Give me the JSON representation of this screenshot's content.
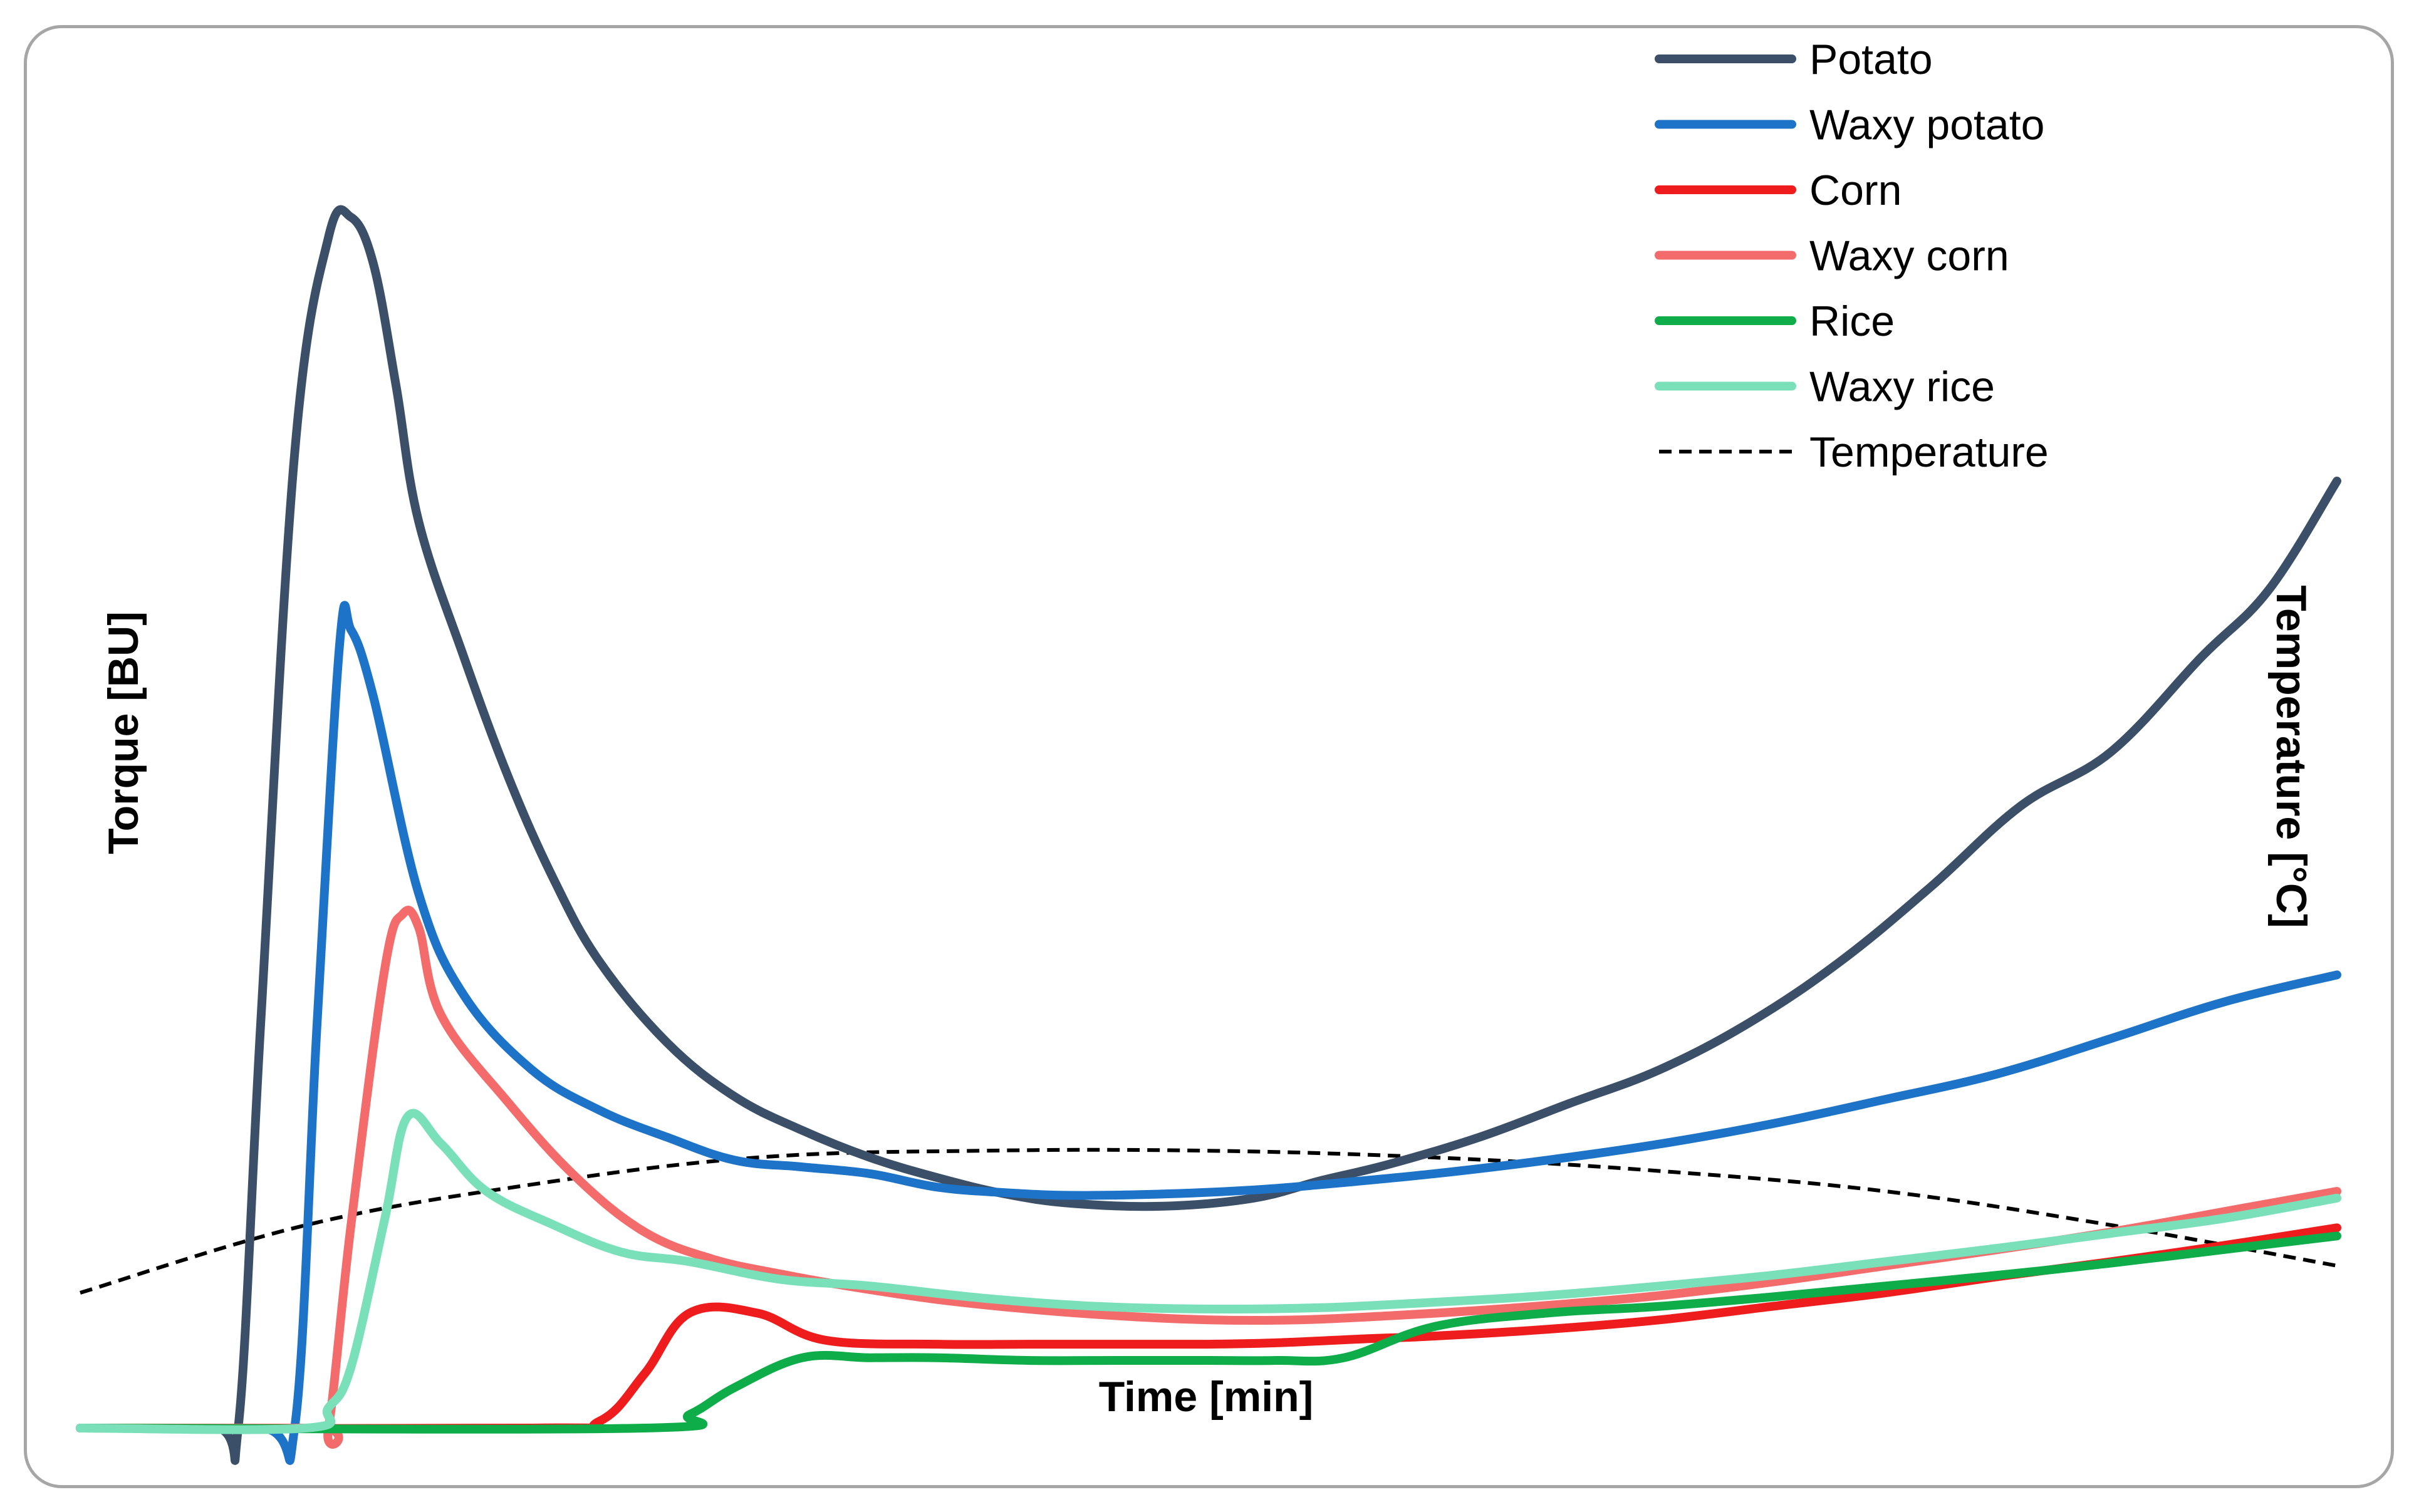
{
  "chart_data": {
    "type": "line",
    "title": "",
    "xlabel": "Time [min]",
    "ylabel": "Torque [BU]",
    "y2label": "Temperature [°C]",
    "xlim": [
      0,
      100
    ],
    "ylim": [
      0,
      100
    ],
    "y2lim": [
      0,
      100
    ],
    "grid": false,
    "legend_position": "top-right",
    "series": [
      {
        "name": "Potato",
        "color": "#3b5068",
        "dashed": false,
        "axis": "left",
        "x": [
          0,
          6,
          7,
          8,
          9.5,
          11,
          12,
          13,
          14,
          15,
          17,
          19,
          21,
          23,
          26,
          29,
          32,
          35,
          38,
          41,
          44,
          48,
          52,
          55,
          58,
          62,
          66,
          70,
          74,
          78,
          82,
          86,
          90,
          94,
          97,
          100
        ],
        "y": [
          0,
          0,
          0,
          30,
          72,
          88,
          89.5,
          86,
          77,
          67,
          57,
          48,
          40.5,
          34.5,
          28.5,
          24.5,
          22,
          20,
          18.5,
          17.3,
          16.6,
          16.4,
          17,
          18.3,
          19.5,
          21.5,
          24,
          26.5,
          30,
          34.5,
          40,
          46,
          50,
          57,
          62,
          70
        ]
      },
      {
        "name": "Waxy potato",
        "color": "#1c73c7",
        "dashed": false,
        "axis": "left",
        "x": [
          0,
          8,
          9.5,
          10.5,
          11.5,
          12,
          13,
          15,
          17,
          20,
          23,
          26,
          29,
          32,
          35,
          38,
          41,
          44,
          48,
          52,
          55,
          60,
          65,
          70,
          75,
          80,
          85,
          90,
          95,
          100
        ],
        "y": [
          0,
          0,
          0,
          30,
          58,
          59,
          54,
          39.5,
          32,
          26.5,
          23.5,
          21.5,
          19.8,
          19.3,
          18.8,
          17.8,
          17.4,
          17.2,
          17.3,
          17.6,
          18,
          18.8,
          19.8,
          21,
          22.5,
          24.3,
          26.2,
          28.8,
          31.5,
          33.5
        ]
      },
      {
        "name": "Corn",
        "color": "#ee1c1c",
        "dashed": false,
        "axis": "left",
        "x": [
          0,
          20,
          23,
          25,
          27,
          30,
          33,
          38,
          42,
          46,
          50,
          53,
          57,
          60,
          65,
          70,
          75,
          80,
          85,
          90,
          95,
          100
        ],
        "y": [
          0,
          0,
          0.5,
          4,
          8.5,
          8.5,
          6.5,
          6.2,
          6.2,
          6.2,
          6.2,
          6.3,
          6.6,
          6.8,
          7.3,
          8,
          9,
          10,
          11.2,
          12.3,
          13.5,
          14.8
        ]
      },
      {
        "name": "Waxy corn",
        "color": "#f36b6b",
        "dashed": false,
        "axis": "left",
        "x": [
          0,
          10.5,
          11,
          12,
          13.5,
          14.3,
          15,
          16,
          19,
          22,
          25,
          28,
          31,
          34,
          38,
          42,
          46,
          50,
          54,
          58,
          62,
          66,
          70,
          75,
          80,
          85,
          90,
          95,
          100
        ],
        "y": [
          0,
          0,
          0,
          15,
          34,
          38,
          37,
          30.5,
          24,
          18.5,
          14.5,
          12.5,
          11.4,
          10.5,
          9.5,
          8.8,
          8.3,
          8,
          8,
          8.3,
          8.7,
          9.2,
          9.8,
          10.8,
          12,
          13.2,
          14.5,
          16,
          17.5
        ]
      },
      {
        "name": "Rice",
        "color": "#0fad4a",
        "dashed": false,
        "axis": "left",
        "x": [
          0,
          25,
          27,
          29,
          32,
          35,
          38,
          42,
          46,
          50,
          53,
          56,
          60,
          65,
          70,
          75,
          80,
          85,
          90,
          95,
          100
        ],
        "y": [
          0,
          0,
          1,
          3,
          5.2,
          5.2,
          5.2,
          5,
          5,
          5,
          5,
          5.2,
          7.5,
          8.5,
          9,
          9.7,
          10.5,
          11.3,
          12.2,
          13.2,
          14.2
        ]
      },
      {
        "name": "Waxy rice",
        "color": "#79e0b9",
        "dashed": false,
        "axis": "left",
        "x": [
          0,
          10,
          11,
          12,
          13.5,
          14.5,
          16,
          18,
          21,
          24,
          27,
          31,
          35,
          40,
          45,
          50,
          55,
          60,
          65,
          70,
          75,
          80,
          85,
          90,
          95,
          100
        ],
        "y": [
          0,
          0,
          1.5,
          4.5,
          15.5,
          23,
          21,
          17.5,
          15,
          13,
          12.3,
          11,
          10.5,
          9.6,
          9,
          8.8,
          8.9,
          9.3,
          9.8,
          10.5,
          11.3,
          12.3,
          13.3,
          14.4,
          15.5,
          17
        ]
      },
      {
        "name": "Temperature",
        "color": "#000000",
        "dashed": true,
        "axis": "right",
        "x": [
          0,
          10,
          20,
          30,
          40,
          50,
          60,
          70,
          80,
          90,
          100
        ],
        "y": [
          10,
          15,
          18,
          20,
          20.5,
          20.5,
          20,
          19,
          17.5,
          15,
          12
        ]
      }
    ]
  }
}
